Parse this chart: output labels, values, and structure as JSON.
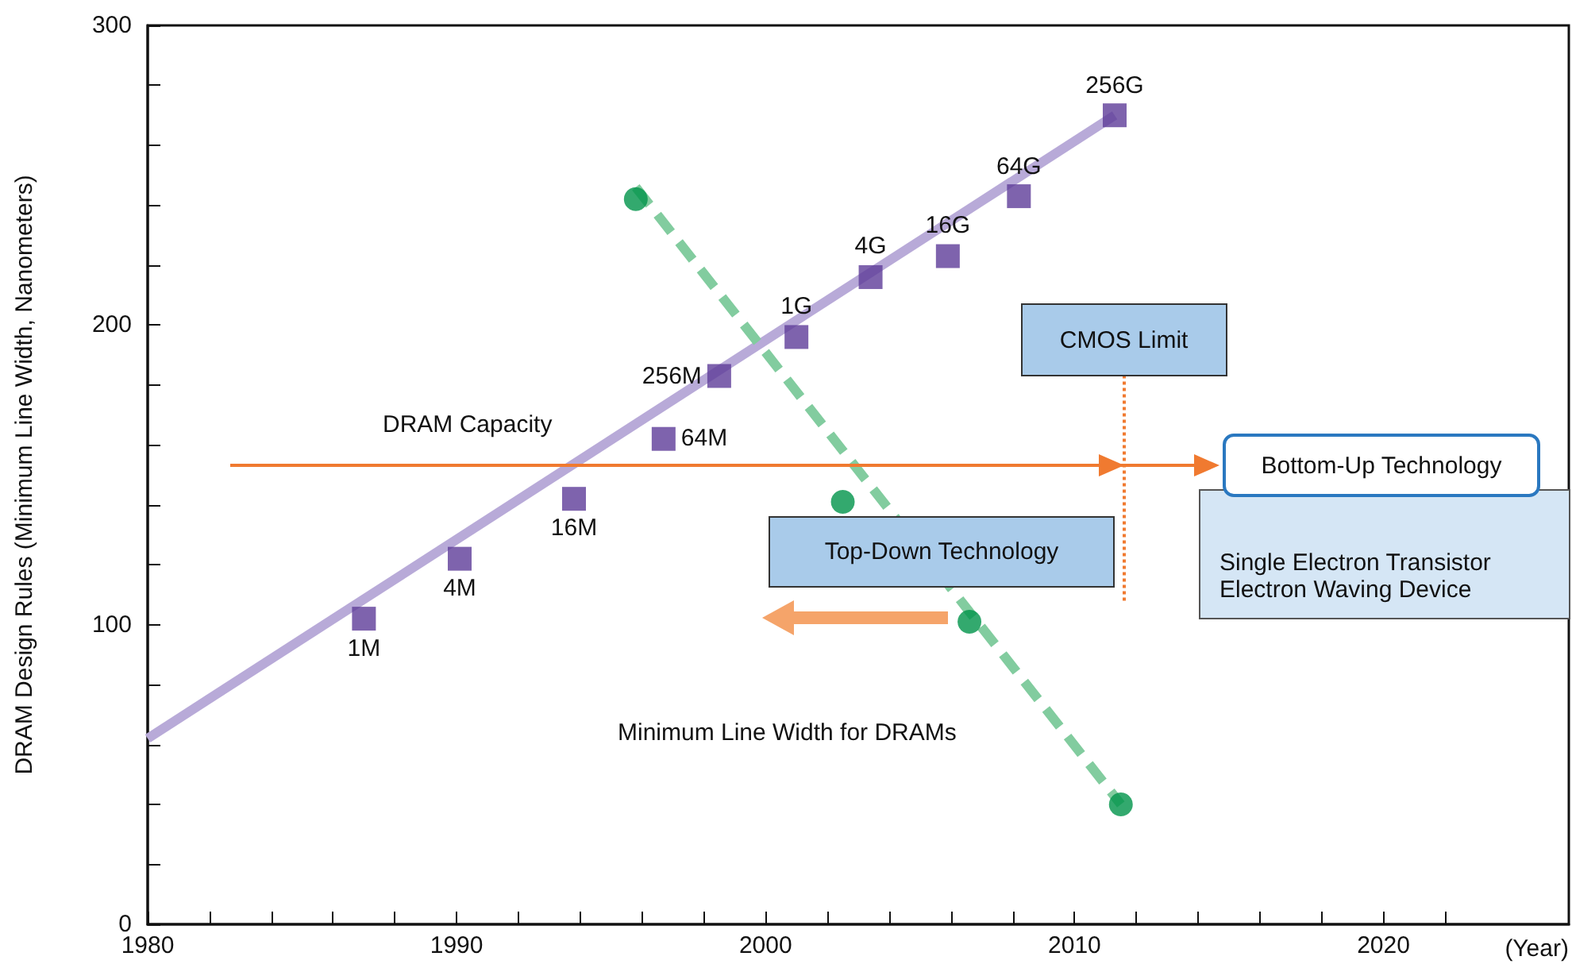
{
  "chart_data": {
    "type": "scatter",
    "ylabel": "DRAM Design Rules (Minimum Line Width, Nanometers)",
    "xlabel": "(Year)",
    "xlim": [
      1980,
      2026
    ],
    "xticks": [
      1980,
      {
        "value": 1982,
        "label": null
      },
      {
        "value": 1984,
        "label": null
      },
      {
        "value": 1986,
        "label": null
      },
      {
        "value": 1988,
        "label": null
      },
      1990,
      {
        "value": 1992,
        "label": null
      },
      {
        "value": 1994,
        "label": null
      },
      {
        "value": 1996,
        "label": null
      },
      {
        "value": 1998,
        "label": null
      },
      2000,
      {
        "value": 2002,
        "label": null
      },
      {
        "value": 2004,
        "label": null
      },
      {
        "value": 2006,
        "label": null
      },
      {
        "value": 2008,
        "label": null
      },
      2010,
      {
        "value": 2012,
        "label": null
      },
      {
        "value": 2014,
        "label": null
      },
      {
        "value": 2016,
        "label": null
      },
      {
        "value": 2018,
        "label": null
      },
      2020,
      {
        "value": 2022,
        "label": null
      }
    ],
    "ylim": [
      0,
      300
    ],
    "yticks": [
      0,
      {
        "value": 20,
        "label": null
      },
      {
        "value": 40,
        "label": null
      },
      {
        "value": 60,
        "label": null
      },
      {
        "value": 80,
        "label": null
      },
      100,
      {
        "value": 120,
        "label": null
      },
      {
        "value": 140,
        "label": null
      },
      {
        "value": 160,
        "label": null
      },
      {
        "value": 180,
        "label": null
      },
      200,
      {
        "value": 220,
        "label": null
      },
      {
        "value": 240,
        "label": null
      },
      {
        "value": 260,
        "label": null
      },
      {
        "value": 280,
        "label": null
      },
      300
    ],
    "grid": false,
    "series": [
      {
        "type": "line",
        "color": "#b8aad8",
        "marker": "none",
        "line_style": "solid",
        "x": [
          1980,
          2011.3
        ],
        "values": [
          62,
          270
        ]
      },
      {
        "type": "line",
        "color": "#82cc9f",
        "marker": "none",
        "line_style": "dashed",
        "x": [
          1995.8,
          2011.5
        ],
        "values": [
          246,
          40
        ]
      },
      {
        "color": "#5e3c99",
        "marker": "square",
        "x": [
          1987,
          1990.1,
          1993.8,
          1996.7,
          1998.5,
          2001,
          2003.4,
          2005.9,
          2008.2,
          2011.3
        ],
        "values": [
          102,
          122,
          142,
          162,
          183,
          196,
          216,
          223,
          243,
          270
        ]
      },
      {
        "color": "#00934a",
        "marker": "circle",
        "x": [
          1995.8,
          2002.5,
          2006.6,
          2011.5
        ],
        "values": [
          242,
          141,
          101,
          40
        ]
      }
    ],
    "ref_lines": [
      {
        "axis": "x",
        "value": 2011.6,
        "label": "CMOS Limit",
        "color": "#f07a30",
        "line_style": "dotted"
      }
    ],
    "annotations": [
      {
        "text": "1M",
        "x": 1987,
        "y": 102
      },
      {
        "text": "4M",
        "x": 1990.1,
        "y": 122
      },
      {
        "text": "16M",
        "x": 1993.8,
        "y": 142
      },
      {
        "text": "64M",
        "x": 1996.7,
        "y": 162
      },
      {
        "text": "256M",
        "x": 1998.5,
        "y": 183
      },
      {
        "text": "1G",
        "x": 2001,
        "y": 196
      },
      {
        "text": "4G",
        "x": 2003.4,
        "y": 216
      },
      {
        "text": "16G",
        "x": 2005.9,
        "y": 223
      },
      {
        "text": "64G",
        "x": 2008.2,
        "y": 243
      },
      {
        "text": "256G",
        "x": 2011.3,
        "y": 270
      },
      "DRAM Capacity",
      "Minimum Line Width for DRAMs",
      "Top-Down Technology",
      "Bottom-Up Technology",
      "Single Electron Transistor",
      "Electron Waving Device"
    ]
  }
}
